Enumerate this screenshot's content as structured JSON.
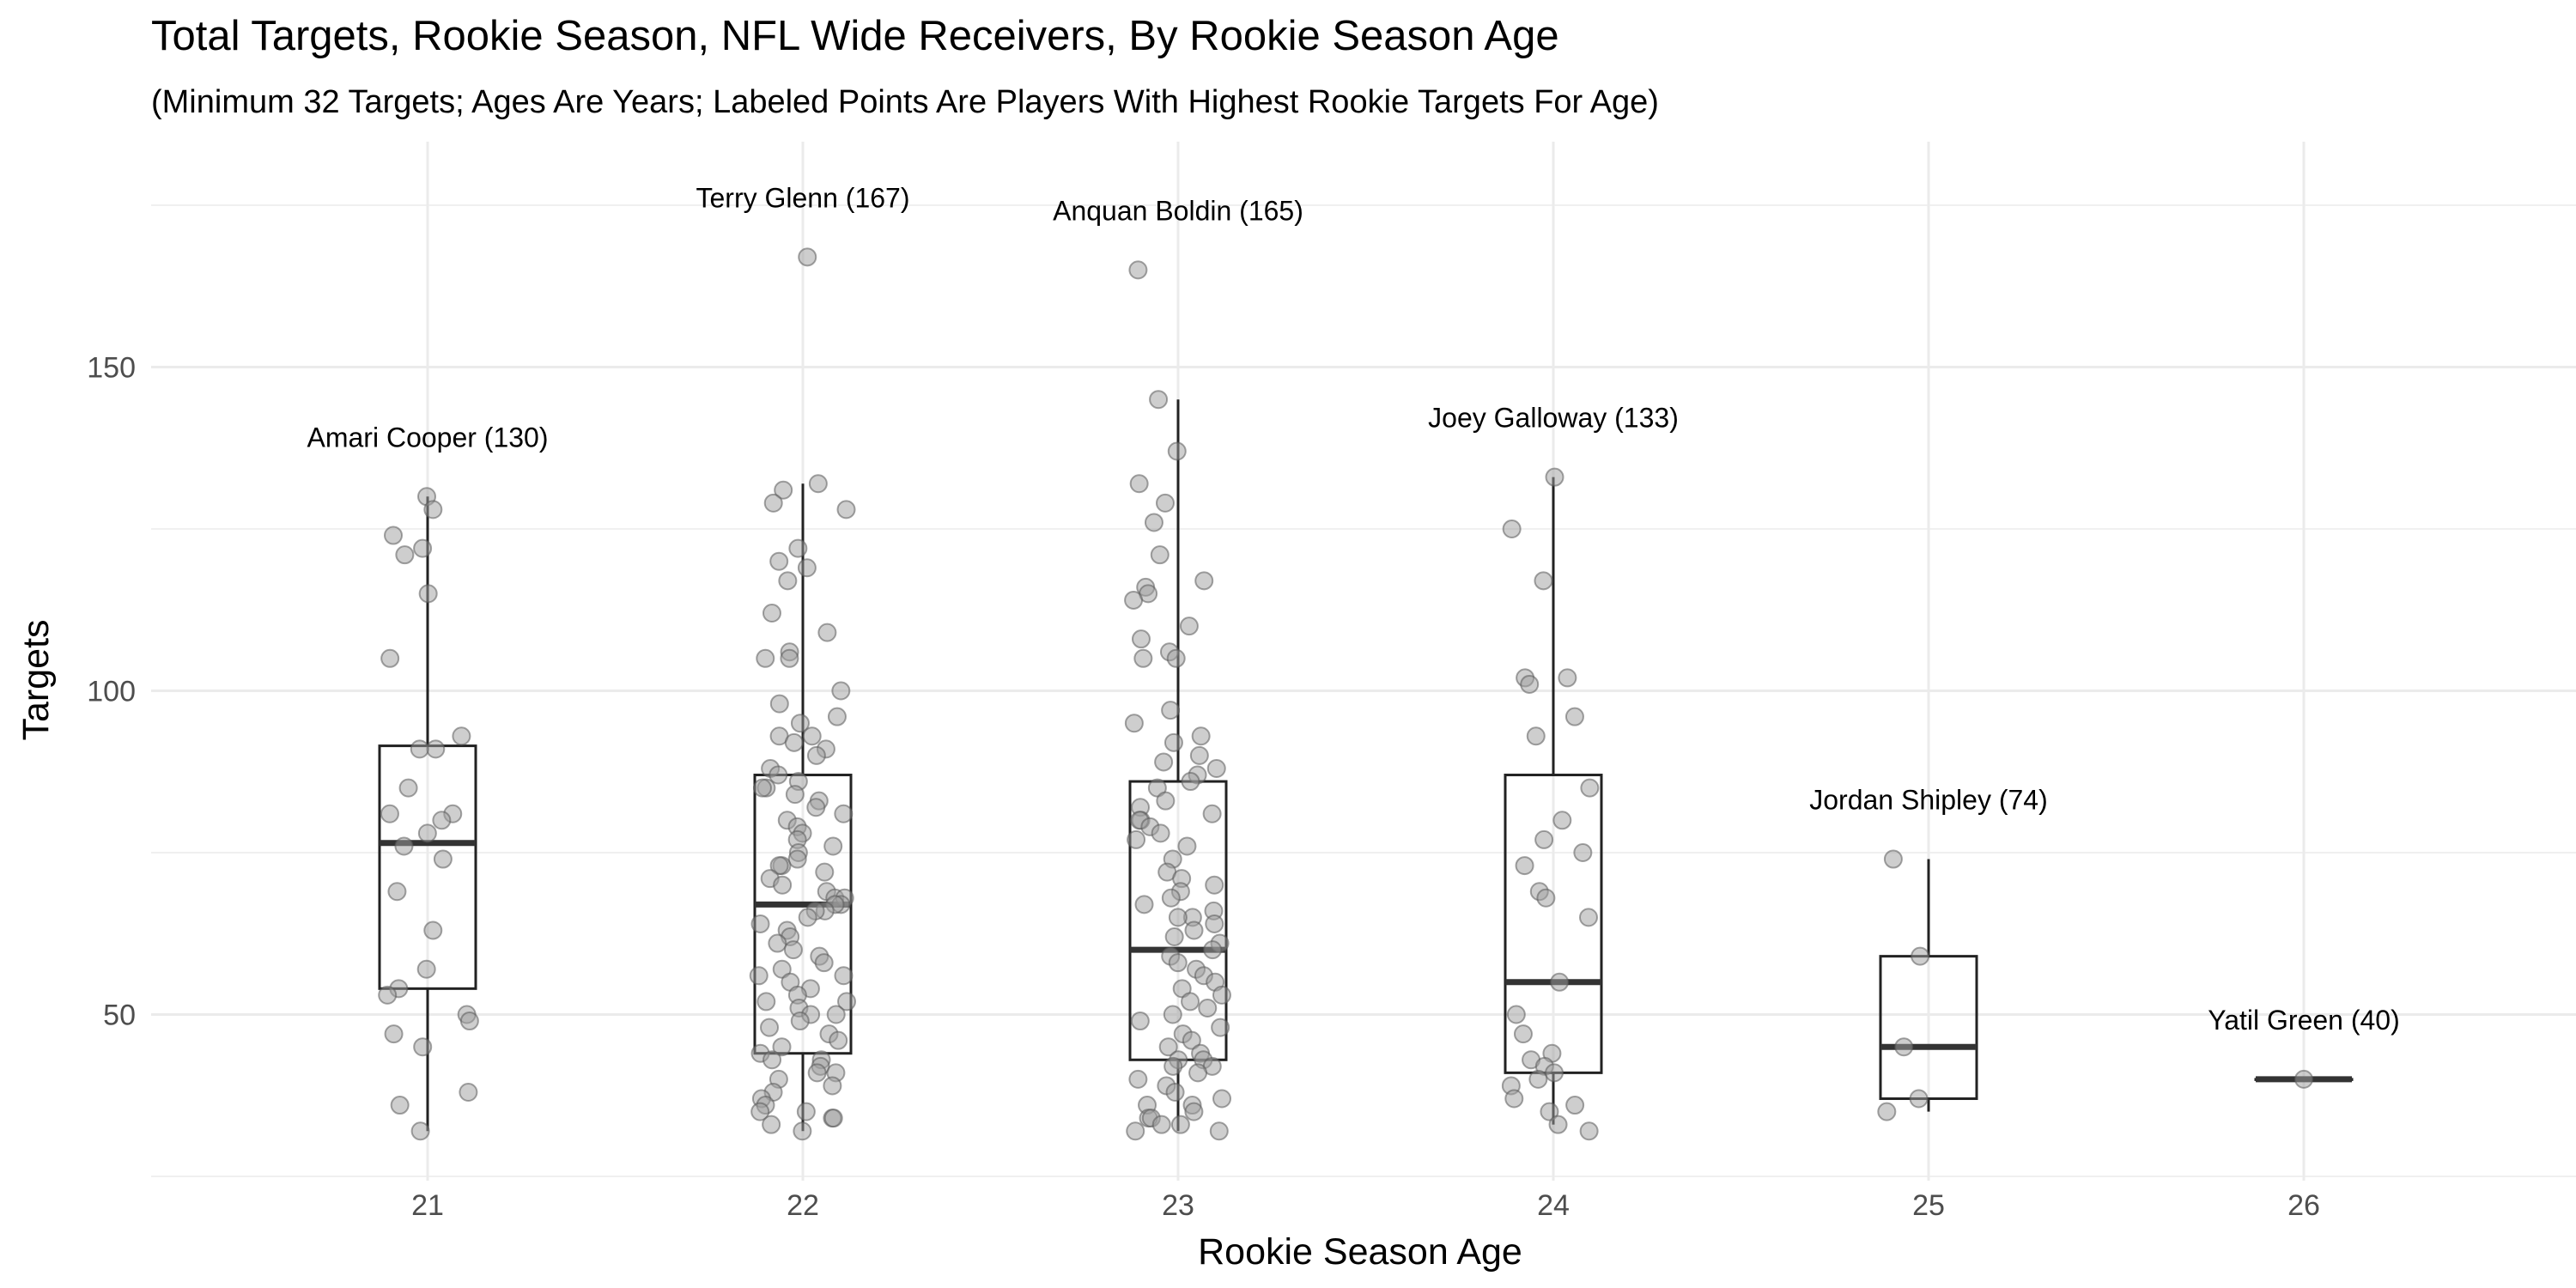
{
  "chart_data": {
    "type": "box",
    "title": "Total Targets, Rookie Season, NFL Wide Receivers, By Rookie Season Age",
    "subtitle": "(Minimum 32 Targets; Ages Are Years; Labeled Points Are Players With Highest Rookie Targets For Age)",
    "xlabel": "Rookie Season Age",
    "ylabel": "Targets",
    "categories": [
      "21",
      "22",
      "23",
      "24",
      "25",
      "26"
    ],
    "yticks": [
      50,
      100,
      150
    ],
    "ylim": [
      23,
      180
    ],
    "grid": true,
    "boxes": [
      {
        "age": "21",
        "q1": 54,
        "median": 76.5,
        "q3": 91.5,
        "whisker_low": 32,
        "whisker_high": 130
      },
      {
        "age": "22",
        "q1": 44,
        "median": 67,
        "q3": 87,
        "whisker_low": 32,
        "whisker_high": 132
      },
      {
        "age": "23",
        "q1": 43,
        "median": 60,
        "q3": 86,
        "whisker_low": 32,
        "whisker_high": 145
      },
      {
        "age": "24",
        "q1": 41,
        "median": 55,
        "q3": 87,
        "whisker_low": 33,
        "whisker_high": 133
      },
      {
        "age": "25",
        "q1": 37,
        "median": 45,
        "q3": 59,
        "whisker_low": 35,
        "whisker_high": 74
      },
      {
        "age": "26",
        "q1": 40,
        "median": 40,
        "q3": 40,
        "whisker_low": 40,
        "whisker_high": 40
      }
    ],
    "points": {
      "21": [
        130,
        128,
        124,
        121,
        122,
        115,
        105,
        93,
        91,
        91,
        85,
        81,
        80,
        81,
        78,
        76,
        74,
        69,
        63,
        57,
        54,
        53,
        50,
        49,
        47,
        45,
        38,
        36,
        32
      ],
      "22": [
        167,
        132,
        131,
        129,
        128,
        122,
        120,
        119,
        117,
        112,
        109,
        106,
        105,
        105,
        100,
        98,
        96,
        95,
        93,
        93,
        92,
        91,
        90,
        88,
        87,
        86,
        85,
        85,
        84,
        83,
        82,
        81,
        80,
        79,
        78,
        77,
        76,
        75,
        74,
        73,
        73,
        72,
        71,
        70,
        69,
        68,
        68,
        67,
        67,
        66,
        66,
        65,
        64,
        63,
        62,
        61,
        60,
        59,
        58,
        57,
        56,
        56,
        55,
        54,
        53,
        52,
        52,
        51,
        50,
        50,
        49,
        48,
        47,
        46,
        45,
        44,
        43,
        43,
        42,
        41,
        41,
        40,
        39,
        38,
        37,
        36,
        35,
        35,
        34,
        34,
        33,
        32
      ],
      "23": [
        165,
        145,
        137,
        132,
        129,
        126,
        121,
        117,
        116,
        115,
        114,
        110,
        108,
        106,
        105,
        105,
        97,
        95,
        93,
        92,
        90,
        89,
        88,
        87,
        86,
        85,
        83,
        82,
        81,
        80,
        80,
        79,
        78,
        77,
        76,
        74,
        72,
        71,
        70,
        69,
        68,
        67,
        66,
        65,
        65,
        64,
        63,
        62,
        61,
        60,
        59,
        58,
        57,
        56,
        55,
        54,
        53,
        52,
        51,
        50,
        49,
        48,
        47,
        46,
        45,
        44,
        43,
        43,
        42,
        42,
        41,
        40,
        39,
        38,
        37,
        36,
        36,
        35,
        34,
        34,
        33,
        33,
        32,
        32
      ],
      "24": [
        133,
        125,
        117,
        102,
        102,
        101,
        96,
        93,
        85,
        80,
        77,
        75,
        73,
        69,
        68,
        65,
        55,
        50,
        47,
        44,
        43,
        42,
        41,
        40,
        39,
        37,
        36,
        35,
        33,
        32
      ],
      "25": [
        74,
        59,
        45,
        37,
        35
      ],
      "26": [
        40
      ]
    },
    "annotations": [
      {
        "age": "21",
        "text": "Amari Cooper (130)",
        "y": 130
      },
      {
        "age": "22",
        "text": "Terry Glenn (167)",
        "y": 167
      },
      {
        "age": "23",
        "text": "Anquan Boldin (165)",
        "y": 165
      },
      {
        "age": "24",
        "text": "Joey Galloway (133)",
        "y": 133
      },
      {
        "age": "25",
        "text": "Jordan Shipley (74)",
        "y": 74
      },
      {
        "age": "26",
        "text": "Yatil Green (40)",
        "y": 40
      }
    ],
    "colors": {
      "point_fill": "#9e9e9e",
      "point_stroke": "#5a5a5a",
      "box_stroke": "#222222",
      "median": "#333333",
      "grid": "#ebebeb",
      "axis_text": "#4d4d4d"
    }
  }
}
